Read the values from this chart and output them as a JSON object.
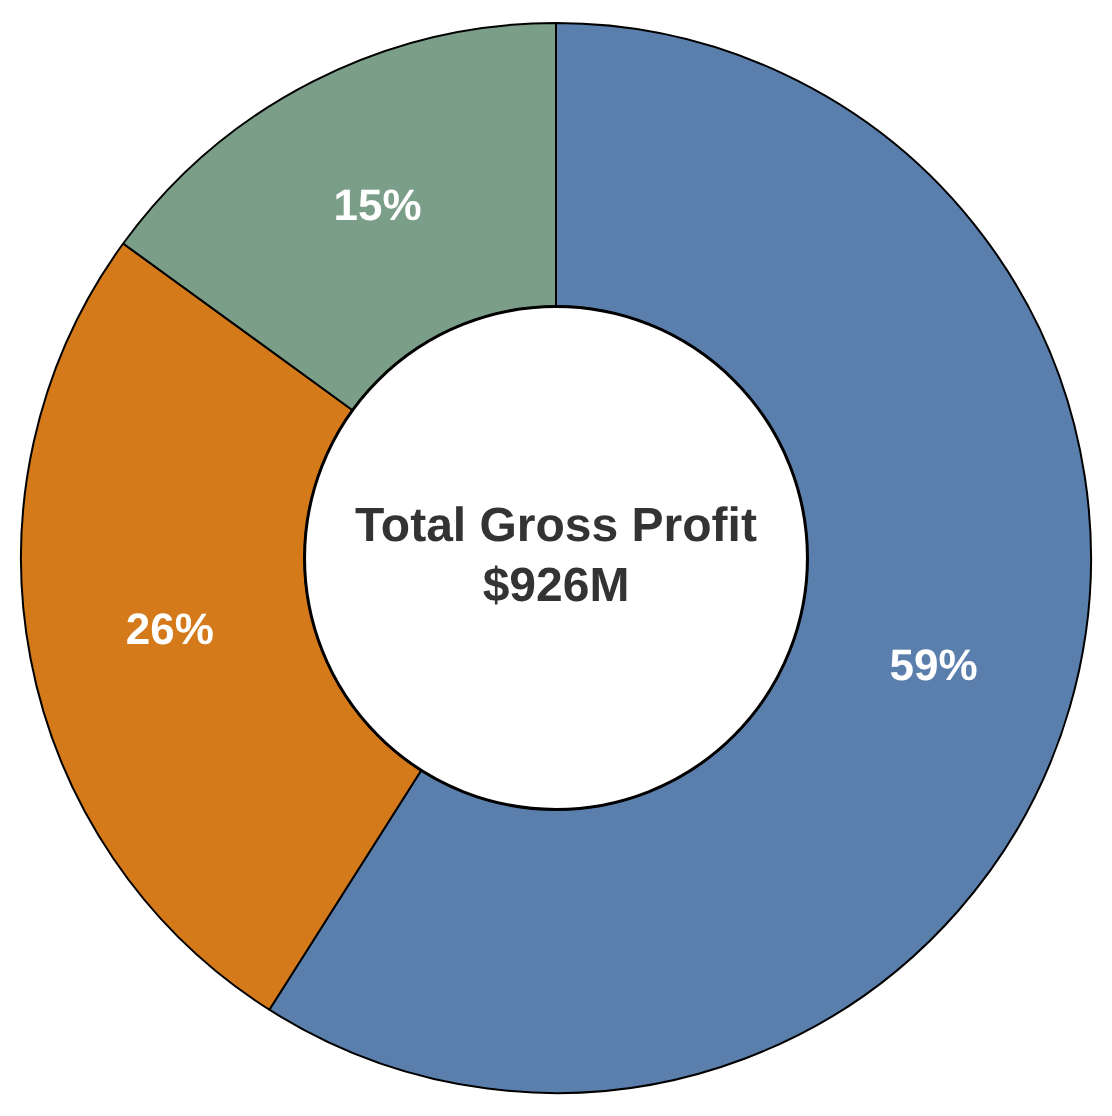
{
  "chart_data": {
    "type": "donut",
    "categories": [
      null,
      null,
      null
    ],
    "values": [
      59,
      26,
      15
    ],
    "colors": [
      "#5b7fad",
      "#d47a1a",
      "#7a9e87"
    ],
    "value_labels": [
      "59%",
      "26%",
      "15%"
    ],
    "annotations": [
      "Total Gross Profit $926M"
    ],
    "legend": false
  }
}
